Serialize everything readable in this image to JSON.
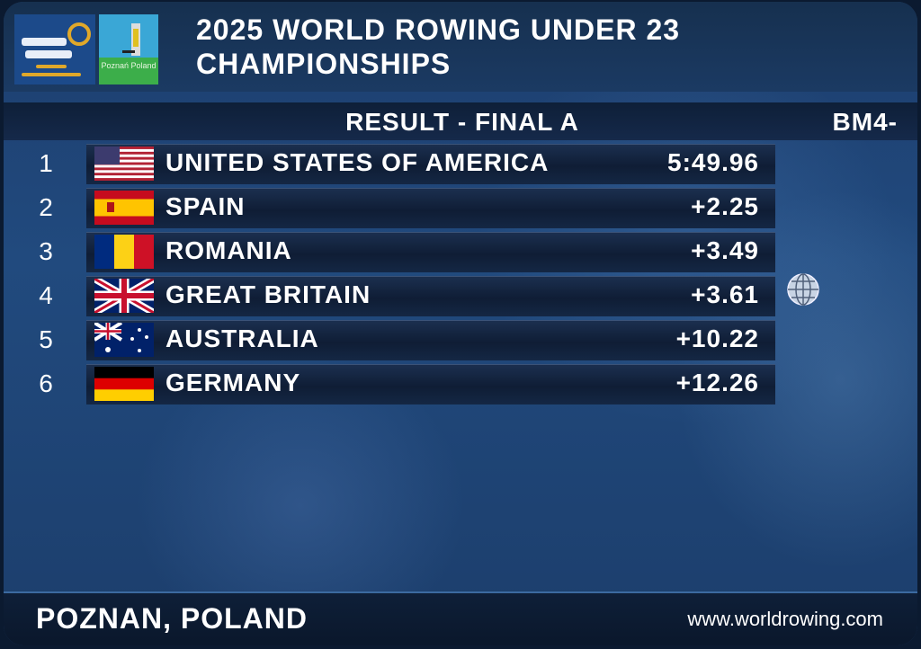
{
  "header": {
    "title_line1": "2025 WORLD ROWING UNDER 23",
    "title_line2": "CHAMPIONSHIPS",
    "logo_text": "2025 world rowing under 23 championships",
    "host_logo_text": "Poznań Poland"
  },
  "result": {
    "label": "RESULT - FINAL A",
    "boat_class": "BM4-"
  },
  "rows": [
    {
      "rank": "1",
      "country": "UNITED STATES OF AMERICA",
      "time": "5:49.96",
      "flag": "usa"
    },
    {
      "rank": "2",
      "country": "SPAIN",
      "time": "+2.25",
      "flag": "spain"
    },
    {
      "rank": "3",
      "country": "ROMANIA",
      "time": "+3.49",
      "flag": "romania"
    },
    {
      "rank": "4",
      "country": "GREAT BRITAIN",
      "time": "+3.61",
      "flag": "great-britain",
      "icon": "globe-icon"
    },
    {
      "rank": "5",
      "country": "AUSTRALIA",
      "time": "+10.22",
      "flag": "australia"
    },
    {
      "rank": "6",
      "country": "GERMANY",
      "time": "+12.26",
      "flag": "germany"
    }
  ],
  "footer": {
    "location": "POZNAN, POLAND",
    "url": "www.worldrowing.com"
  }
}
